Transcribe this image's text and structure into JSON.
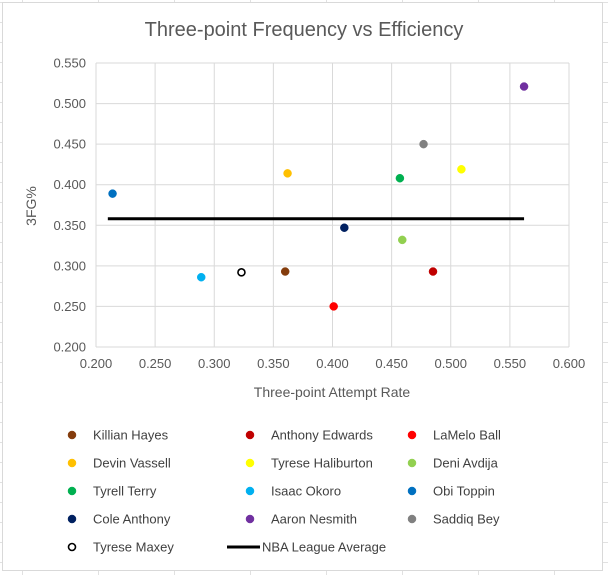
{
  "chart_data": {
    "type": "scatter",
    "title": "Three-point Frequency vs Efficiency",
    "xlabel": "Three-point Attempt Rate",
    "ylabel": "3FG%",
    "xlim": [
      0.2,
      0.6
    ],
    "ylim": [
      0.2,
      0.55
    ],
    "xticks": [
      "0.200",
      "0.250",
      "0.300",
      "0.350",
      "0.400",
      "0.450",
      "0.500",
      "0.550",
      "0.600"
    ],
    "yticks": [
      "0.200",
      "0.250",
      "0.300",
      "0.350",
      "0.400",
      "0.450",
      "0.500",
      "0.550"
    ],
    "grid": true,
    "legend_position": "bottom",
    "series": [
      {
        "name": "Killian Hayes",
        "color": "#843c0c",
        "x": 0.36,
        "y": 0.293,
        "marker": "filled"
      },
      {
        "name": "Anthony Edwards",
        "color": "#c00000",
        "x": 0.485,
        "y": 0.293,
        "marker": "filled"
      },
      {
        "name": "LaMelo Ball",
        "color": "#ff0000",
        "x": 0.401,
        "y": 0.25,
        "marker": "filled"
      },
      {
        "name": "Devin Vassell",
        "color": "#ffc000",
        "x": 0.362,
        "y": 0.414,
        "marker": "filled"
      },
      {
        "name": "Tyrese Haliburton",
        "color": "#ffff00",
        "x": 0.509,
        "y": 0.419,
        "marker": "filled"
      },
      {
        "name": "Deni Avdija",
        "color": "#92d050",
        "x": 0.459,
        "y": 0.332,
        "marker": "filled"
      },
      {
        "name": "Tyrell Terry",
        "color": "#00b050",
        "x": 0.457,
        "y": 0.408,
        "marker": "filled"
      },
      {
        "name": "Isaac Okoro",
        "color": "#00b0f0",
        "x": 0.289,
        "y": 0.286,
        "marker": "filled"
      },
      {
        "name": "Obi Toppin",
        "color": "#0070c0",
        "x": 0.214,
        "y": 0.389,
        "marker": "filled"
      },
      {
        "name": "Cole Anthony",
        "color": "#002060",
        "x": 0.41,
        "y": 0.347,
        "marker": "filled"
      },
      {
        "name": "Aaron Nesmith",
        "color": "#7030a0",
        "x": 0.562,
        "y": 0.521,
        "marker": "filled"
      },
      {
        "name": "Saddiq Bey",
        "color": "#808080",
        "x": 0.477,
        "y": 0.45,
        "marker": "filled"
      },
      {
        "name": "Tyrese Maxey",
        "color": "#000000",
        "x": 0.323,
        "y": 0.292,
        "marker": "hollow"
      }
    ],
    "reference_line": {
      "name": "NBA League Average",
      "color": "#000000",
      "y": 0.358,
      "x_from": 0.21,
      "x_to": 0.562
    }
  }
}
